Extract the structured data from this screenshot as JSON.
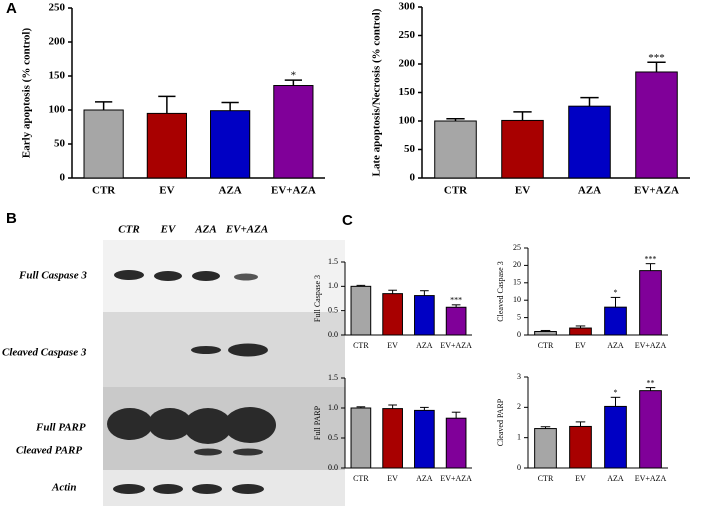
{
  "panel_labels": [
    "A",
    "B",
    "C"
  ],
  "blot": {
    "columns": [
      "CTR",
      "EV",
      "AZA",
      "EV+AZA"
    ],
    "rows": [
      "Full Caspase 3",
      "Cleaved Caspase 3",
      "Full PARP",
      "Cleaved PARP",
      "Actin"
    ]
  },
  "chart_data": [
    {
      "type": "bar",
      "y_label": "Early apoptosis (% control)",
      "categories": [
        "CTR",
        "EV",
        "AZA",
        "EV+AZA"
      ],
      "values": [
        100,
        95,
        99,
        136
      ],
      "errors": [
        12,
        25,
        12,
        8
      ],
      "significance": [
        null,
        null,
        null,
        "*"
      ],
      "colors": [
        "#a6a6a6",
        "#a80000",
        "#0000c4",
        "#800099"
      ],
      "ylim": [
        0,
        250
      ],
      "yticks": [
        0,
        50,
        100,
        150,
        200,
        250
      ]
    },
    {
      "type": "bar",
      "y_label": "Late apoptosis/Necrosis (% control)",
      "categories": [
        "CTR",
        "EV",
        "AZA",
        "EV+AZA"
      ],
      "values": [
        100,
        101,
        126,
        186
      ],
      "errors": [
        4,
        15,
        15,
        17
      ],
      "significance": [
        null,
        null,
        null,
        "***"
      ],
      "colors": [
        "#a6a6a6",
        "#a80000",
        "#0000c4",
        "#800099"
      ],
      "ylim": [
        0,
        300
      ],
      "yticks": [
        0,
        50,
        100,
        150,
        200,
        250,
        300
      ]
    },
    {
      "type": "bar",
      "y_label": "Full Caspase 3",
      "categories": [
        "CTR",
        "EV",
        "AZA",
        "EV+AZA"
      ],
      "values": [
        1.0,
        0.85,
        0.81,
        0.57
      ],
      "errors": [
        0.02,
        0.07,
        0.1,
        0.05
      ],
      "significance": [
        null,
        null,
        null,
        "***"
      ],
      "colors": [
        "#a6a6a6",
        "#a80000",
        "#0000c4",
        "#800099"
      ],
      "ylim": [
        0,
        1.5
      ],
      "yticks": [
        {
          "value": 0,
          "label": "0.0"
        },
        0.5,
        {
          "value": 1,
          "label": "1.0"
        },
        1.5
      ]
    },
    {
      "type": "bar",
      "y_label": "Cleaved Caspase 3",
      "categories": [
        "CTR",
        "EV",
        "AZA",
        "EV+AZA"
      ],
      "values": [
        1.0,
        2.0,
        8.0,
        18.5
      ],
      "errors": [
        0.3,
        0.6,
        2.8,
        2.0
      ],
      "significance": [
        null,
        null,
        "*",
        "***"
      ],
      "colors": [
        "#a6a6a6",
        "#a80000",
        "#0000c4",
        "#800099"
      ],
      "ylim": [
        0,
        25
      ],
      "yticks": [
        0,
        5,
        10,
        15,
        20,
        25
      ]
    },
    {
      "type": "bar",
      "y_label": "Full PARP",
      "categories": [
        "CTR",
        "EV",
        "AZA",
        "EV+AZA"
      ],
      "values": [
        1.0,
        0.99,
        0.96,
        0.83
      ],
      "errors": [
        0.02,
        0.06,
        0.05,
        0.1
      ],
      "significance": [
        null,
        null,
        null,
        null
      ],
      "colors": [
        "#a6a6a6",
        "#a80000",
        "#0000c4",
        "#800099"
      ],
      "ylim": [
        0,
        1.5
      ],
      "yticks": [
        {
          "value": 0,
          "label": "0.0"
        },
        0.5,
        {
          "value": 1,
          "label": "1.0"
        },
        1.5
      ]
    },
    {
      "type": "bar",
      "y_label": "Cleaved PARP",
      "categories": [
        "CTR",
        "EV",
        "AZA",
        "EV+AZA"
      ],
      "values": [
        1.3,
        1.37,
        2.03,
        2.55
      ],
      "errors": [
        0.06,
        0.15,
        0.3,
        0.1
      ],
      "significance": [
        null,
        null,
        "*",
        "**"
      ],
      "colors": [
        "#a6a6a6",
        "#a80000",
        "#0000c4",
        "#800099"
      ],
      "ylim": [
        0,
        3
      ],
      "yticks": [
        0,
        1,
        2,
        3
      ]
    }
  ]
}
